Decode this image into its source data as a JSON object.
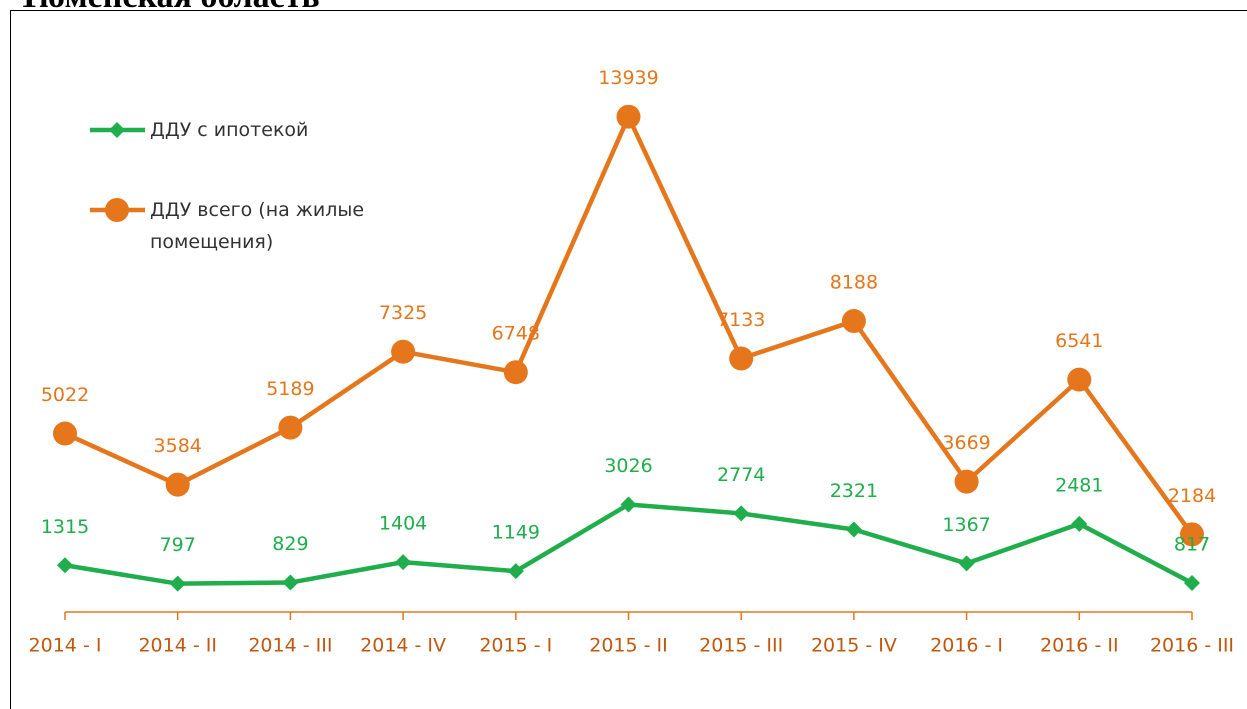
{
  "chart_data": {
    "type": "line",
    "title": "Тюменская область",
    "categories": [
      "2014 - I",
      "2014 - II",
      "2014 - III",
      "2014 - IV",
      "2015 - I",
      "2015 - II",
      "2015 - III",
      "2015 - IV",
      "2016 - I",
      "2016 - II",
      "2016 - III"
    ],
    "series": [
      {
        "name": "ДДУ с ипотекой",
        "color": "#1fae4b",
        "marker": "diamond",
        "values": [
          1315,
          797,
          829,
          1404,
          1149,
          3026,
          2774,
          2321,
          1367,
          2481,
          817
        ]
      },
      {
        "name": "ДДУ всего (на жилые помещения)",
        "color": "#e5761b",
        "marker": "circle",
        "values": [
          5022,
          3584,
          5189,
          7325,
          6748,
          13939,
          7133,
          8188,
          3669,
          6541,
          2184
        ]
      }
    ],
    "ylim": [
      0,
      15000
    ],
    "legend": "top-left",
    "category_color": "#c0580f"
  }
}
